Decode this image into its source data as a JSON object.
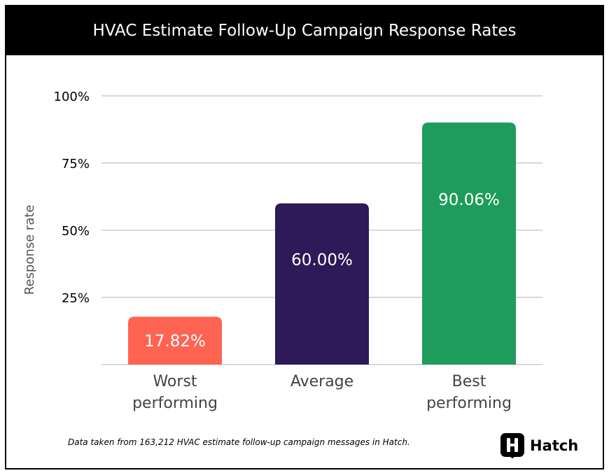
{
  "chart_data": {
    "type": "bar",
    "title": "HVAC Estimate Follow-Up Campaign Response Rates",
    "ylabel": "Response rate",
    "xlabel": "",
    "ylim": [
      0,
      100
    ],
    "yticks": [
      "25%",
      "50%",
      "75%",
      "100%"
    ],
    "ytick_values": [
      25,
      50,
      75,
      100
    ],
    "categories": [
      [
        "Worst",
        "performing"
      ],
      [
        "Average"
      ],
      [
        "Best",
        "performing"
      ]
    ],
    "values": [
      17.82,
      60.0,
      90.06
    ],
    "data_labels": [
      "17.82%",
      "60.00%",
      "90.06%"
    ],
    "colors": [
      "#ff6452",
      "#2e1a58",
      "#1f9c5b"
    ],
    "grid": true
  },
  "footnote": "Data taken from 163,212 HVAC estimate follow-up campaign messages in Hatch.",
  "brand": {
    "name": "Hatch",
    "logo_icon": "hatch-logo-icon"
  }
}
